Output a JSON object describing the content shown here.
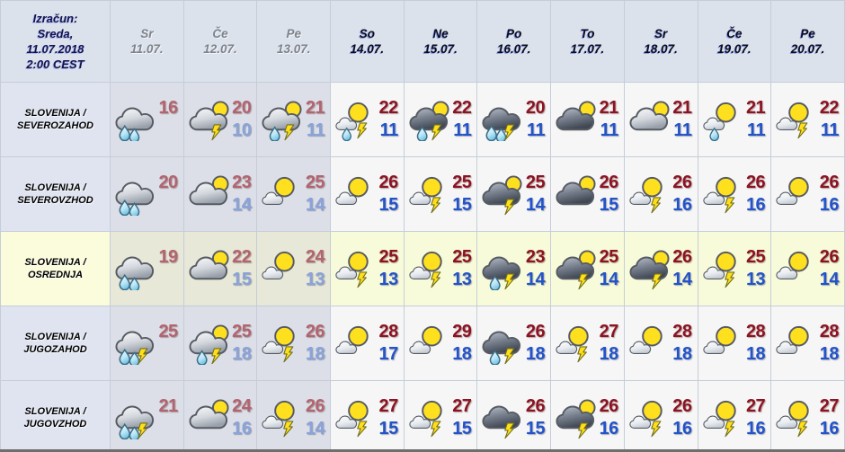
{
  "colors": {
    "hi": "#8C1322",
    "lo": "#2353C8",
    "hi_past": "#B26470",
    "lo_past": "#8AA3DA",
    "header_bg": "#DCE2EB",
    "region_bg": "#DFE4F0",
    "region_highlight": "#FAFCDB",
    "cell_bg": "#F6F6F6",
    "cell_past_bg": "#DCDFE7",
    "row_highlight": "#F8FBD9",
    "row_highlight_past": "#E7E8D7",
    "grid": "#C5CDD9",
    "day_past": "#7D828B",
    "day_future": "#0B0C1C",
    "corner_text": "#13124F"
  },
  "chart_data": {
    "type": "table",
    "title": "Izračun: Sreda, 11.07.2018 2:00 CEST",
    "corner": "Izračun:\nSreda,\n11.07.2018\n2:00 CEST",
    "columns": [
      {
        "day": "Sr",
        "date": "11.07.",
        "past": true
      },
      {
        "day": "Če",
        "date": "12.07.",
        "past": true
      },
      {
        "day": "Pe",
        "date": "13.07.",
        "past": true
      },
      {
        "day": "So",
        "date": "14.07.",
        "past": false
      },
      {
        "day": "Ne",
        "date": "15.07.",
        "past": false
      },
      {
        "day": "Po",
        "date": "16.07.",
        "past": false
      },
      {
        "day": "To",
        "date": "17.07.",
        "past": false
      },
      {
        "day": "Sr",
        "date": "18.07.",
        "past": false
      },
      {
        "day": "Če",
        "date": "19.07.",
        "past": false
      },
      {
        "day": "Pe",
        "date": "20.07.",
        "past": false
      }
    ],
    "rows": [
      {
        "region": "SLOVENIJA / SEVEROZAHOD",
        "highlighted": false,
        "cells": [
          {
            "icon": "cloud-rain2",
            "hi": "16",
            "lo": ""
          },
          {
            "icon": "cloud-sun-thunder",
            "hi": "20",
            "lo": "10"
          },
          {
            "icon": "cloud-sun-rain1-thunder",
            "hi": "21",
            "lo": "11"
          },
          {
            "icon": "sun-cloud-rain1-thunder",
            "hi": "22",
            "lo": "11"
          },
          {
            "icon": "darkcloud-sun-rain1-thunder",
            "hi": "22",
            "lo": "11"
          },
          {
            "icon": "darkcloud-rain2-thunder",
            "hi": "20",
            "lo": "11"
          },
          {
            "icon": "darkcloud-sun",
            "hi": "21",
            "lo": "11"
          },
          {
            "icon": "cloud-sun",
            "hi": "21",
            "lo": "11"
          },
          {
            "icon": "sun-cloud-rain1",
            "hi": "21",
            "lo": "11"
          },
          {
            "icon": "sun-cloud-thunder",
            "hi": "22",
            "lo": "11"
          }
        ]
      },
      {
        "region": "SLOVENIJA / SEVEROVZHOD",
        "highlighted": false,
        "cells": [
          {
            "icon": "cloud-rain2",
            "hi": "20",
            "lo": ""
          },
          {
            "icon": "cloud-sun",
            "hi": "23",
            "lo": "14"
          },
          {
            "icon": "sun-cloud",
            "hi": "25",
            "lo": "14"
          },
          {
            "icon": "sun-cloud",
            "hi": "26",
            "lo": "15"
          },
          {
            "icon": "sun-cloud-thunder",
            "hi": "25",
            "lo": "15"
          },
          {
            "icon": "darkcloud-sun-thunder",
            "hi": "25",
            "lo": "14"
          },
          {
            "icon": "darkcloud-sun",
            "hi": "26",
            "lo": "15"
          },
          {
            "icon": "sun-cloud-thunder",
            "hi": "26",
            "lo": "16"
          },
          {
            "icon": "sun-cloud-thunder",
            "hi": "26",
            "lo": "16"
          },
          {
            "icon": "sun-cloud",
            "hi": "26",
            "lo": "16"
          }
        ]
      },
      {
        "region": "SLOVENIJA / OSREDNJA",
        "highlighted": true,
        "cells": [
          {
            "icon": "cloud-rain2",
            "hi": "19",
            "lo": ""
          },
          {
            "icon": "cloud-sun",
            "hi": "22",
            "lo": "15"
          },
          {
            "icon": "sun-cloud",
            "hi": "24",
            "lo": "13"
          },
          {
            "icon": "sun-cloud-thunder",
            "hi": "25",
            "lo": "13"
          },
          {
            "icon": "sun-cloud-thunder",
            "hi": "25",
            "lo": "13"
          },
          {
            "icon": "darkcloud-rain1-thunder",
            "hi": "23",
            "lo": "14"
          },
          {
            "icon": "darkcloud-sun-thunder",
            "hi": "25",
            "lo": "14"
          },
          {
            "icon": "darkcloud-sun-thunder",
            "hi": "26",
            "lo": "14"
          },
          {
            "icon": "sun-cloud-thunder",
            "hi": "25",
            "lo": "13"
          },
          {
            "icon": "sun-cloud",
            "hi": "26",
            "lo": "14"
          }
        ]
      },
      {
        "region": "SLOVENIJA / JUGOZAHOD",
        "highlighted": false,
        "cells": [
          {
            "icon": "cloud-rain2-thunder",
            "hi": "25",
            "lo": ""
          },
          {
            "icon": "cloud-sun-rain1-thunder",
            "hi": "25",
            "lo": "18"
          },
          {
            "icon": "sun-cloud-thunder",
            "hi": "26",
            "lo": "18"
          },
          {
            "icon": "sun-cloud",
            "hi": "28",
            "lo": "17"
          },
          {
            "icon": "sun-cloud",
            "hi": "29",
            "lo": "18"
          },
          {
            "icon": "darkcloud-rain1-thunder",
            "hi": "26",
            "lo": "18"
          },
          {
            "icon": "sun-cloud-thunder",
            "hi": "27",
            "lo": "18"
          },
          {
            "icon": "sun-cloud",
            "hi": "28",
            "lo": "18"
          },
          {
            "icon": "sun-cloud",
            "hi": "28",
            "lo": "18"
          },
          {
            "icon": "sun-cloud",
            "hi": "28",
            "lo": "18"
          }
        ]
      },
      {
        "region": "SLOVENIJA / JUGOVZHOD",
        "highlighted": false,
        "cells": [
          {
            "icon": "cloud-rain2-thunder",
            "hi": "21",
            "lo": ""
          },
          {
            "icon": "cloud-sun",
            "hi": "24",
            "lo": "16"
          },
          {
            "icon": "sun-cloud-thunder",
            "hi": "26",
            "lo": "14"
          },
          {
            "icon": "sun-cloud-thunder",
            "hi": "27",
            "lo": "15"
          },
          {
            "icon": "sun-cloud-thunder",
            "hi": "27",
            "lo": "15"
          },
          {
            "icon": "darkcloud-thunder",
            "hi": "26",
            "lo": "15"
          },
          {
            "icon": "darkcloud-sun-thunder",
            "hi": "26",
            "lo": "16"
          },
          {
            "icon": "sun-cloud-thunder",
            "hi": "26",
            "lo": "16"
          },
          {
            "icon": "sun-cloud-thunder",
            "hi": "27",
            "lo": "16"
          },
          {
            "icon": "sun-cloud-thunder",
            "hi": "27",
            "lo": "16"
          }
        ]
      }
    ]
  }
}
